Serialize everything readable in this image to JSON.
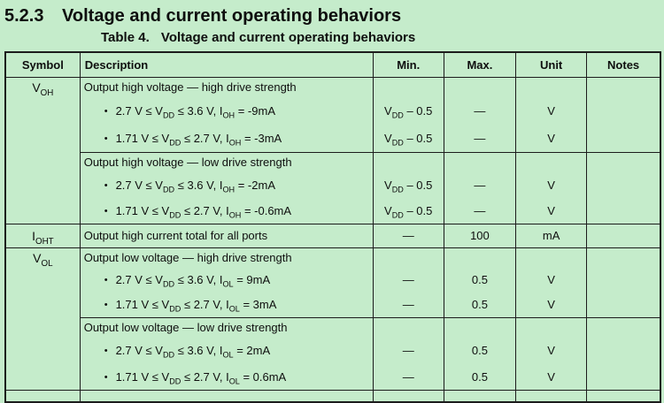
{
  "colors": {
    "background": "#c5eccb",
    "border": "#1c1c1c",
    "text": "#0e0e0e"
  },
  "heading": {
    "number": "5.2.3",
    "title": "Voltage and current operating behaviors"
  },
  "caption": {
    "label": "Table 4.",
    "title": "Voltage and current operating behaviors"
  },
  "table": {
    "columns": {
      "symbol": "Symbol",
      "description": "Description",
      "min": "Min.",
      "max": "Max.",
      "unit": "Unit",
      "notes": "Notes"
    },
    "rows": [
      {
        "symbol": "V{OH}",
        "desc": "Output high voltage — high drive strength",
        "min": "",
        "max": "",
        "unit": "",
        "notes": ""
      },
      {
        "desc": "2.7 V ≤ V{DD} ≤ 3.6 V, I{OH} = -9mA",
        "min": "V{DD} – 0.5",
        "max": "—",
        "unit": "V",
        "notes": ""
      },
      {
        "desc": "1.71 V ≤ V{DD} ≤ 2.7 V, I{OH} = -3mA",
        "min": "V{DD} – 0.5",
        "max": "—",
        "unit": "V",
        "notes": ""
      },
      {
        "desc": "Output high voltage — low drive strength",
        "min": "",
        "max": "",
        "unit": "",
        "notes": ""
      },
      {
        "desc": "2.7 V ≤ V{DD} ≤ 3.6 V, I{OH} = -2mA",
        "min": "V{DD} – 0.5",
        "max": "—",
        "unit": "V",
        "notes": ""
      },
      {
        "desc": "1.71 V ≤ V{DD} ≤ 2.7 V, I{OH} = -0.6mA",
        "min": "V{DD} – 0.5",
        "max": "—",
        "unit": "V",
        "notes": ""
      },
      {
        "symbol": "I{OHT}",
        "desc": "Output high current total for all ports",
        "min": "—",
        "max": "100",
        "unit": "mA",
        "notes": ""
      },
      {
        "symbol": "V{OL}",
        "desc": "Output low voltage — high drive strength",
        "min": "",
        "max": "",
        "unit": "",
        "notes": ""
      },
      {
        "desc": "2.7 V ≤ V{DD} ≤ 3.6 V, I{OL} = 9mA",
        "min": "—",
        "max": "0.5",
        "unit": "V",
        "notes": ""
      },
      {
        "desc": "1.71 V ≤ V{DD} ≤ 2.7 V, I{OL} = 3mA",
        "min": "—",
        "max": "0.5",
        "unit": "V",
        "notes": ""
      },
      {
        "desc": "Output low voltage — low drive strength",
        "min": "",
        "max": "",
        "unit": "",
        "notes": ""
      },
      {
        "desc": "2.7 V ≤ V{DD} ≤ 3.6 V, I{OL} = 2mA",
        "min": "—",
        "max": "0.5",
        "unit": "V",
        "notes": ""
      },
      {
        "desc": "1.71 V ≤ V{DD} ≤ 2.7 V, I{OL} = 0.6mA",
        "min": "—",
        "max": "0.5",
        "unit": "V",
        "notes": ""
      }
    ]
  }
}
